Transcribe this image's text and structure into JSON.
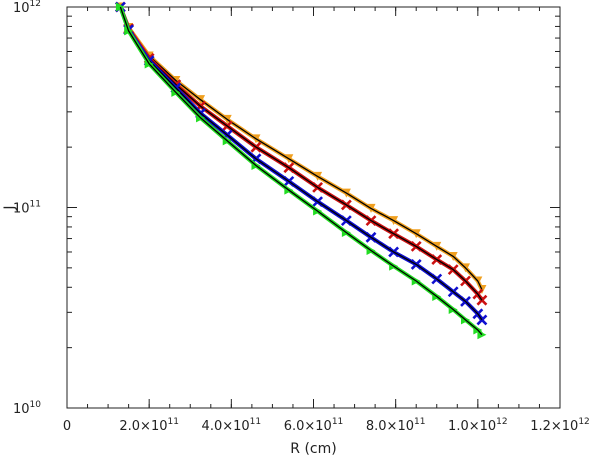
{
  "chart_data": {
    "type": "line",
    "title": "",
    "xlabel": "R (cm)",
    "ylabel": "J",
    "xscale": "linear",
    "yscale": "log",
    "xlim": [
      0,
      1200000000000.0
    ],
    "ylim": [
      10000000000.0,
      1000000000000.0
    ],
    "x_tick_labels": [
      "0",
      "2.0×10",
      "4.0×10",
      "6.0×10",
      "8.0×10",
      "1.0×10",
      "1.2×10"
    ],
    "x_tick_exponents": [
      "",
      "11",
      "11",
      "11",
      "11",
      "12",
      "12"
    ],
    "x_ticks": [
      0,
      200000000000.0,
      400000000000.0,
      600000000000.0,
      800000000000.0,
      1000000000000.0,
      1200000000000.0
    ],
    "y_tick_bases": [
      "10",
      "10",
      "10"
    ],
    "y_tick_exponents": [
      "10",
      "11",
      "12"
    ],
    "y_ticks": [
      10000000000.0,
      100000000000.0,
      1000000000000.0
    ],
    "grid": false,
    "legend": "none",
    "series": [
      {
        "color": "#f0a020",
        "line_color": "#000000",
        "marker": "triangle-down",
        "x": [
          130000000000.0,
          150000000000.0,
          200000000000.0,
          265000000000.0,
          325000000000.0,
          390000000000.0,
          460000000000.0,
          540000000000.0,
          610000000000.0,
          680000000000.0,
          740000000000.0,
          795000000000.0,
          850000000000.0,
          900000000000.0,
          940000000000.0,
          970000000000.0,
          1000000000000.0,
          1010000000000.0
        ],
        "y": [
          1000000000000.0,
          790000000000.0,
          570000000000.0,
          430000000000.0,
          345000000000.0,
          275000000000.0,
          220000000000.0,
          175000000000.0,
          143000000000.0,
          118000000000.0,
          99000000000.0,
          86000000000.0,
          74000000000.0,
          64000000000.0,
          57000000000.0,
          50000000000.0,
          43000000000.0,
          39000000000.0
        ]
      },
      {
        "color": "#cc1111",
        "line_color": "#000000",
        "marker": "x",
        "x": [
          130000000000.0,
          150000000000.0,
          200000000000.0,
          265000000000.0,
          325000000000.0,
          390000000000.0,
          460000000000.0,
          540000000000.0,
          610000000000.0,
          680000000000.0,
          740000000000.0,
          795000000000.0,
          850000000000.0,
          900000000000.0,
          940000000000.0,
          970000000000.0,
          1000000000000.0,
          1010000000000.0
        ],
        "y": [
          1000000000000.0,
          780000000000.0,
          555000000000.0,
          410000000000.0,
          320000000000.0,
          255000000000.0,
          200000000000.0,
          158000000000.0,
          126000000000.0,
          103000000000.0,
          86000000000.0,
          74000000000.0,
          64000000000.0,
          55000000000.0,
          49000000000.0,
          43000000000.0,
          37000000000.0,
          34500000000.0
        ]
      },
      {
        "color": "#1010d0",
        "line_color": "#000000",
        "marker": "x",
        "x": [
          130000000000.0,
          150000000000.0,
          200000000000.0,
          265000000000.0,
          325000000000.0,
          390000000000.0,
          460000000000.0,
          540000000000.0,
          610000000000.0,
          680000000000.0,
          740000000000.0,
          795000000000.0,
          850000000000.0,
          900000000000.0,
          940000000000.0,
          970000000000.0,
          1000000000000.0,
          1010000000000.0
        ],
        "y": [
          1000000000000.0,
          770000000000.0,
          540000000000.0,
          395000000000.0,
          295000000000.0,
          230000000000.0,
          175000000000.0,
          135000000000.0,
          107000000000.0,
          86000000000.0,
          71000000000.0,
          60000000000.0,
          52000000000.0,
          44000000000.0,
          38000000000.0,
          34000000000.0,
          29500000000.0,
          27500000000.0
        ]
      },
      {
        "color": "#22dd22",
        "line_color": "#000000",
        "marker": "triangle-right",
        "x": [
          130000000000.0,
          150000000000.0,
          200000000000.0,
          265000000000.0,
          325000000000.0,
          390000000000.0,
          460000000000.0,
          540000000000.0,
          610000000000.0,
          680000000000.0,
          740000000000.0,
          795000000000.0,
          850000000000.0,
          900000000000.0,
          940000000000.0,
          970000000000.0,
          1000000000000.0,
          1010000000000.0
        ],
        "y": [
          1000000000000.0,
          760000000000.0,
          520000000000.0,
          375000000000.0,
          280000000000.0,
          215000000000.0,
          162000000000.0,
          122000000000.0,
          96000000000.0,
          75000000000.0,
          61000000000.0,
          51000000000.0,
          43000000000.0,
          36000000000.0,
          31000000000.0,
          27500000000.0,
          24500000000.0,
          23200000000.0
        ]
      }
    ]
  }
}
